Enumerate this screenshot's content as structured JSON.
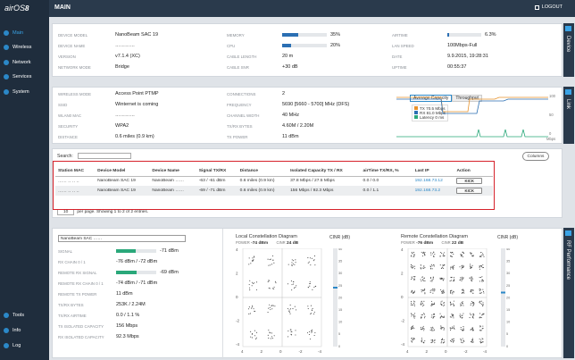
{
  "app": {
    "logo": "airOS",
    "logo_num": "8",
    "page_title": "MAIN",
    "logout": "LOGOUT"
  },
  "sidebar": {
    "items": [
      {
        "label": "Main"
      },
      {
        "label": "Wireless"
      },
      {
        "label": "Network"
      },
      {
        "label": "Services"
      },
      {
        "label": "System"
      }
    ],
    "bottom": [
      {
        "label": "Tools"
      },
      {
        "label": "Info"
      },
      {
        "label": "Log"
      }
    ]
  },
  "device": {
    "tab": "Device",
    "left": [
      {
        "label": "DEVICE MODEL",
        "value": "NanoBeam SAC 19"
      },
      {
        "label": "DEVICE NAME",
        "value": "…………"
      },
      {
        "label": "VERSION",
        "value": "v7.1.4 (XC)"
      },
      {
        "label": "NETWORK MODE",
        "value": "Bridge"
      }
    ],
    "mid": [
      {
        "label": "MEMORY",
        "value": "35%",
        "pct": 35
      },
      {
        "label": "CPU",
        "value": "20%",
        "pct": 20
      },
      {
        "label": "CABLE LENGTH",
        "value": "20 m"
      },
      {
        "label": "CABLE SNR",
        "value": "+30 dB"
      }
    ],
    "right": [
      {
        "label": "AIRTIME",
        "value": "6.3%",
        "pct": 6.3
      },
      {
        "label": "LAN SPEED",
        "value": "100Mbps-Full"
      },
      {
        "label": "DATE",
        "value": "9.9.2015, 19:28:31"
      },
      {
        "label": "UPTIME",
        "value": "00:55:37"
      }
    ]
  },
  "link": {
    "tab": "Link",
    "left": [
      {
        "label": "WIRELESS MODE",
        "value": "Access Point PTMP"
      },
      {
        "label": "SSID",
        "value": "Winternet is coming"
      },
      {
        "label": "WLAN0 MAC",
        "value": "…………"
      },
      {
        "label": "SECURITY",
        "value": "WPA2"
      },
      {
        "label": "DISTANCE",
        "value": "0.6 miles (0.9 km)"
      }
    ],
    "mid": [
      {
        "label": "CONNECTIONS",
        "value": "2"
      },
      {
        "label": "FREQUENCY",
        "value": "5690 [5660 - 5700] MHz (DFS)"
      },
      {
        "label": "CHANNEL WIDTH",
        "value": "40 MHz"
      },
      {
        "label": "TX/RX BYTES",
        "value": "4.60M / 2.20M"
      },
      {
        "label": "TX POWER",
        "value": "11 dBm"
      }
    ],
    "chart": {
      "tabs": [
        "Average Capacity",
        "Throughput"
      ],
      "legend": [
        {
          "label": "TX 70.5 Mbps",
          "color": "#e8922b"
        },
        {
          "label": "RX 81.0 Mbps",
          "color": "#2b6fb3"
        },
        {
          "label": "Latency 0 ms",
          "color": "#2aa87a"
        }
      ],
      "yticks": [
        "100",
        "50",
        "0"
      ],
      "unit": "Mbps"
    }
  },
  "stations": {
    "search_label": "Search:",
    "columns_btn": "Columns",
    "headers": [
      "Station MAC",
      "Device Model",
      "Device Name",
      "Signal TX/RX",
      "Distance",
      "Isolated Capacity TX / RX",
      "airTime TX/RX, %",
      "Last IP",
      "Action"
    ],
    "rows": [
      {
        "mac": "…… ‥ ‥ ‥",
        "model": "NanoBeam SAC 19",
        "name": "NanoBeam ……",
        "signal": "-63 / -61 dBm",
        "distance": "0.6 miles (0.9 km)",
        "capacity": "37.8 Mbps / 27.5 Mbps",
        "airtime": "0.0 / 0.0",
        "ip": "192.168.73.12",
        "action": "KICK"
      },
      {
        "mac": "…… ‥ ‥ ‥",
        "model": "NanoBeam SAC 19",
        "name": "NanoBeam ……",
        "signal": "-69 / -71 dBm",
        "distance": "0.6 miles (0.9 km)",
        "capacity": "156 Mbps / 92.3 Mbps",
        "airtime": "0.0 / 1.1",
        "ip": "192.168.73.2",
        "action": "KICK"
      }
    ],
    "page_size": "10",
    "footer": "per page. Showing 1 to 2 of 2 entries."
  },
  "rf": {
    "tab": "RF Performance",
    "select": "NanoBeam SAC ……",
    "rows": [
      {
        "label": "SIGNAL",
        "value": "-71 dBm",
        "pct": 48
      },
      {
        "label": "RX CHAIN 0 / 1",
        "value": "-76 dBm / -72 dBm"
      },
      {
        "label": "REMOTE RX SIGNAL",
        "value": "-69 dBm",
        "pct": 52
      },
      {
        "label": "REMOTE RX CHAIN 0 / 1",
        "value": "-74 dBm / -71 dBm"
      },
      {
        "label": "REMOTE TX POWER",
        "value": "11 dBm"
      },
      {
        "label": "TX/RX BYTES",
        "value": "253K / 2.24M"
      },
      {
        "label": "TX/RX AIRTIME",
        "value": "0.0 / 1.1 %"
      },
      {
        "label": "TX ISOLATED CAPACITY",
        "value": "156 Mbps"
      },
      {
        "label": "RX ISOLATED CAPACITY",
        "value": "92.3 Mbps"
      }
    ],
    "local": {
      "title": "Local Constellation Diagram",
      "power_label": "POWER",
      "power": "-74 dBm",
      "cinr_label": "CINR",
      "cinr": "24 dB",
      "cinr_axis": "CINR (dB)"
    },
    "remote": {
      "title": "Remote Constellation Diagram",
      "power_label": "POWER",
      "power": "-76 dBm",
      "cinr_label": "CINR",
      "cinr": "22 dB",
      "cinr_axis": "CINR (dB)"
    },
    "axis_ticks": [
      "4",
      "2",
      "0",
      "-2",
      "-4"
    ],
    "cinr_ticks": [
      "40",
      "35",
      "30",
      "25",
      "20",
      "15",
      "10",
      "5",
      "0"
    ]
  }
}
